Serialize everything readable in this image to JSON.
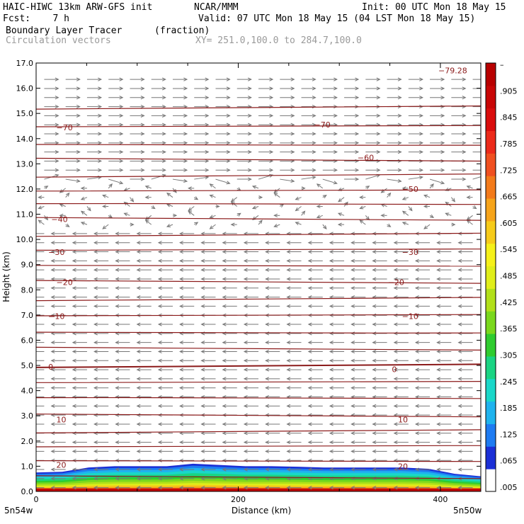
{
  "header": {
    "model": "HAIC-HIWC 13km ARW-GFS init",
    "center": "NCAR/MMM",
    "init": "Init: 00 UTC Mon 18 May 15",
    "fcst": "Fcst:    7 h",
    "valid": "Valid: 07 UTC Mon 18 May 15 (04 LST Mon 18 May 15)",
    "field": "Boundary Layer Tracer",
    "units": "(fraction)",
    "vectors": "Circulation vectors",
    "xsec": "XY= 251.0,100.0 to 284.7,100.0"
  },
  "chart_data": {
    "type": "cross-section",
    "xlabel": "Distance (km)",
    "ylabel": "Height (km)",
    "xlim": [
      0,
      440
    ],
    "ylim": [
      0,
      17
    ],
    "x_ticks": [
      "0",
      "200",
      "400"
    ],
    "y_ticks": [
      "0.0",
      "1.0",
      "2.0",
      "3.0",
      "4.0",
      "5.0",
      "6.0",
      "7.0",
      "8.0",
      "9.0",
      "10.0",
      "11.0",
      "12.0",
      "13.0",
      "14.0",
      "15.0",
      "16.0",
      "17.0"
    ],
    "start_label": "5n54w",
    "end_label": "5n50w",
    "colorbar": {
      "labels": [
        ".005",
        ".065",
        ".125",
        ".185",
        ".245",
        ".305",
        ".365",
        ".425",
        ".485",
        ".545",
        ".605",
        ".665",
        ".725",
        ".785",
        ".845",
        ".905",
        "–"
      ],
      "colors": [
        "#ffffff",
        "#1b2fd6",
        "#1e7bf2",
        "#1fb3ee",
        "#1ad7c9",
        "#1ad483",
        "#2fcc2f",
        "#7ad81d",
        "#b2e01a",
        "#e0ee1a",
        "#f5f11a",
        "#f6cb1a",
        "#f6a41a",
        "#f37a1a",
        "#f05020",
        "#ec2a1a",
        "#d90d0d",
        "#c80606",
        "#b80000"
      ]
    },
    "isotherm_labels": [
      {
        "text": "−79.28",
        "x": 398,
        "y": 16.7
      },
      {
        "text": "−70",
        "x": 20,
        "y": 14.45
      },
      {
        "text": "−70",
        "x": 275,
        "y": 14.55
      },
      {
        "text": "−60",
        "x": 318,
        "y": 13.25
      },
      {
        "text": "−50",
        "x": 362,
        "y": 12.0
      },
      {
        "text": "−40",
        "x": 15,
        "y": 10.8
      },
      {
        "text": "−30",
        "x": 12,
        "y": 9.5
      },
      {
        "text": "−30",
        "x": 362,
        "y": 9.5
      },
      {
        "text": "−20",
        "x": 20,
        "y": 8.3
      },
      {
        "text": "−20",
        "x": 348,
        "y": 8.3
      },
      {
        "text": "−10",
        "x": 12,
        "y": 6.95
      },
      {
        "text": "−10",
        "x": 362,
        "y": 6.95
      },
      {
        "text": "0",
        "x": 12,
        "y": 4.95
      },
      {
        "text": "0",
        "x": 352,
        "y": 4.85
      },
      {
        "text": "10",
        "x": 20,
        "y": 2.85
      },
      {
        "text": "10",
        "x": 358,
        "y": 2.85
      },
      {
        "text": "20",
        "x": 20,
        "y": 1.05
      },
      {
        "text": "20",
        "x": 358,
        "y": 1.0
      }
    ],
    "isotherm_heights": [
      15.25,
      14.5,
      13.75,
      13.15,
      12.55,
      11.95,
      11.4,
      10.8,
      10.2,
      9.6,
      8.95,
      8.3,
      7.65,
      7.0,
      6.3,
      5.65,
      5.0,
      4.35,
      3.7,
      3.0,
      2.4,
      1.8,
      1.2,
      0.55
    ],
    "pbl_top_km": [
      0.75,
      0.78,
      0.95,
      1.0,
      1.0,
      1.0,
      1.1,
      1.05,
      1.0,
      1.0,
      0.98,
      0.95,
      0.95,
      0.95,
      0.95,
      0.9,
      0.7,
      0.6
    ]
  }
}
